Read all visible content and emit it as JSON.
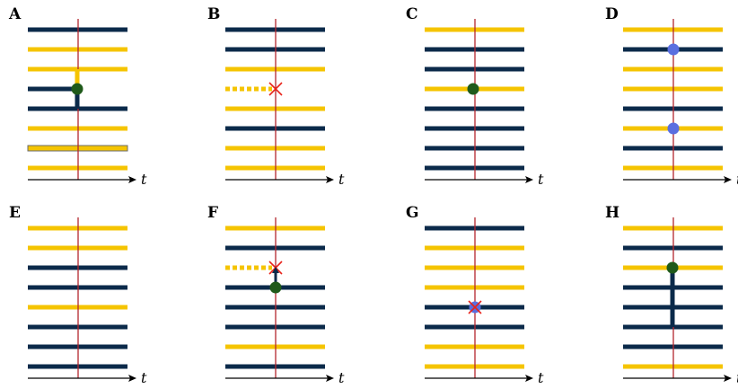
{
  "colors": {
    "navy": "#0b2a4a",
    "yellow": "#f5c400",
    "vline": "#b3262e",
    "green": "#1f5a1a",
    "blue": "#5a6fe0",
    "cross": "#e8231b",
    "axis": "#000000"
  },
  "axis_label": "t",
  "panels": [
    {
      "label": "A",
      "lines": [
        "navy",
        "yellow",
        "yellow",
        "navy",
        "navy",
        "yellow",
        "yellowbox",
        "yellow"
      ],
      "markers": [
        {
          "type": "junction",
          "index": 3,
          "left": "navy",
          "up": "yellow",
          "down": "navy"
        }
      ]
    },
    {
      "label": "B",
      "lines": [
        "navy",
        "navy",
        "yellow",
        "dashed",
        "yellow",
        "navy",
        "yellow",
        "yellow"
      ],
      "markers": [
        {
          "type": "cross",
          "index": 3
        }
      ]
    },
    {
      "label": "C",
      "lines": [
        "yellow",
        "navy",
        "navy",
        "yellow",
        "navy",
        "navy",
        "navy",
        "navy"
      ],
      "markers": [
        {
          "type": "green-dot",
          "index": 3
        }
      ]
    },
    {
      "label": "D",
      "lines": [
        "yellow",
        "navy",
        "yellow",
        "yellow",
        "navy",
        "yellow",
        "navy",
        "yellow"
      ],
      "markers": [
        {
          "type": "blue-dot",
          "index": 1
        },
        {
          "type": "blue-dot",
          "index": 5
        }
      ]
    },
    {
      "label": "E",
      "lines": [
        "yellow",
        "yellow",
        "navy",
        "navy",
        "yellow",
        "navy",
        "navy",
        "navy"
      ],
      "markers": []
    },
    {
      "label": "F",
      "lines": [
        "yellow",
        "navy",
        "dashed",
        "navy",
        "navy",
        "navy",
        "yellow",
        "navy"
      ],
      "markers": [
        {
          "type": "cross",
          "index": 2
        },
        {
          "type": "arrow-dot",
          "from": 2,
          "to": 3
        }
      ]
    },
    {
      "label": "G",
      "lines": [
        "navy",
        "yellow",
        "yellow",
        "yellow",
        "navy",
        "navy",
        "yellow",
        "yellow"
      ],
      "markers": [
        {
          "type": "blue-cross",
          "index": 4
        }
      ]
    },
    {
      "label": "H",
      "lines": [
        "yellow",
        "navy",
        "yellow",
        "navy",
        "navy",
        "navy",
        "navy",
        "yellow"
      ],
      "markers": [
        {
          "type": "hjunction",
          "index": 2,
          "from": 2,
          "to": 5
        }
      ]
    }
  ]
}
